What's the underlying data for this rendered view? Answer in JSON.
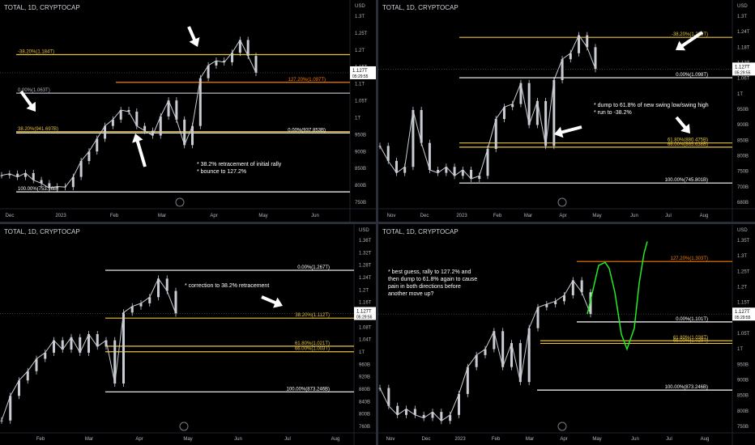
{
  "chart_data": [
    {
      "type": "candlestick",
      "title": "TOTAL, 1D, CRYPTOCAP",
      "y_unit": "USD",
      "x_ticks": [
        "Dec",
        "2023",
        "Feb",
        "Mar",
        "Apr",
        "May",
        "Jun"
      ],
      "y_ticks": [
        "1.3T",
        "1.25T",
        "1.2T",
        "1.15T",
        "1.1T",
        "1.05T",
        "1T",
        "950B",
        "900B",
        "850B",
        "800B",
        "750B"
      ],
      "ylim": [
        700,
        1320
      ],
      "price": "1.127T",
      "countdown": "05:29:55",
      "x_series": [
        0,
        10,
        20,
        30,
        40,
        50,
        60,
        70,
        80,
        90,
        100,
        110,
        120,
        130,
        140,
        150,
        160,
        170,
        180,
        190,
        200,
        210,
        220,
        230,
        240,
        250,
        260,
        270,
        280,
        290,
        300,
        310,
        320
      ],
      "series": [
        {
          "values": [
            805,
            810,
            800,
            812,
            790,
            780,
            765,
            770,
            768,
            800,
            850,
            880,
            920,
            960,
            980,
            1010,
            1005,
            960,
            945,
            930,
            990,
            1040,
            980,
            900,
            960,
            1110,
            1150,
            1165,
            1160,
            1190,
            1230,
            1180,
            1127
          ]
        }
      ],
      "levels": [
        {
          "label": "-38.20%(1.184T)",
          "value": 1184,
          "color": "#e8c33c",
          "side": "left"
        },
        {
          "label": "127.20%(1.097T)",
          "value": 1097,
          "color": "#f57c00",
          "side": "right"
        },
        {
          "label": "0.00%(1.063T)",
          "value": 1063,
          "color": "#b2b5be",
          "side": "left"
        },
        {
          "label": "38.20%(941.697B)",
          "value": 942,
          "color": "#e8c33c",
          "side": "left"
        },
        {
          "label": "0.00%(937.853B)",
          "value": 938,
          "color": "#ffffff",
          "side": "right"
        },
        {
          "label": "100.00%(753.16B)",
          "value": 753,
          "color": "#ffffff",
          "side": "left"
        }
      ],
      "annotation_lines": [
        "* 38.2% retracement of initial rally",
        "* bounce to 127.2%"
      ]
    },
    {
      "type": "candlestick",
      "title": "TOTAL, 1D, CRYPTOCAP",
      "y_unit": "USD",
      "x_ticks": [
        "Nov",
        "Dec",
        "2023",
        "Feb",
        "Mar",
        "Apr",
        "May",
        "Jun",
        "Jul",
        "Aug"
      ],
      "y_ticks": [
        "1.3T",
        "1.24T",
        "1.18T",
        "1.12T",
        "1.06T",
        "1T",
        "950B",
        "900B",
        "850B",
        "800B",
        "750B",
        "700B",
        "680B"
      ],
      "ylim": [
        660,
        1320
      ],
      "price": "1.127T",
      "countdown": "05:29:55",
      "x_series": [
        0,
        10,
        20,
        30,
        40,
        50,
        60,
        70,
        80,
        90,
        100,
        110,
        120,
        130,
        140,
        150,
        160,
        170,
        180,
        190,
        200,
        210,
        220,
        230,
        240,
        250,
        260
      ],
      "series": [
        {
          "values": [
            870,
            820,
            780,
            800,
            990,
            880,
            790,
            780,
            800,
            770,
            790,
            760,
            770,
            860,
            960,
            1000,
            1010,
            1080,
            940,
            1020,
            870,
            1090,
            1160,
            1180,
            1240,
            1200,
            1127
          ]
        }
      ],
      "levels": [
        {
          "label": "-38.20%(1.233T)",
          "value": 1233,
          "color": "#e8c33c",
          "side": "right"
        },
        {
          "label": "0.00%(1.098T)",
          "value": 1098,
          "color": "#ffffff",
          "side": "right"
        },
        {
          "label": "61.80%(880.475B)",
          "value": 880,
          "color": "#e8c33c",
          "side": "right"
        },
        {
          "label": "66.00%(865.638B)",
          "value": 866,
          "color": "#e8c33c",
          "side": "right"
        },
        {
          "label": "100.00%(745.801B)",
          "value": 746,
          "color": "#ffffff",
          "side": "right"
        }
      ],
      "annotation_lines": [
        "* dump to 61.8% of new swing low/swing high",
        "* run to -38.2%"
      ]
    },
    {
      "type": "candlestick",
      "title": "TOTAL, 1D, CRYPTOCAP",
      "y_unit": "USD",
      "x_ticks": [
        "Feb",
        "Mar",
        "Apr",
        "May",
        "Jun",
        "Jul",
        "Aug"
      ],
      "y_ticks": [
        "1.36T",
        "1.32T",
        "1.28T",
        "1.24T",
        "1.2T",
        "1.16T",
        "1.12T",
        "1.08T",
        "1.04T",
        "1T",
        "960B",
        "920B",
        "880B",
        "840B",
        "800B",
        "760B"
      ],
      "ylim": [
        740,
        1380
      ],
      "price": "1.127T",
      "countdown": "05:29:55",
      "x_series": [
        0,
        10,
        20,
        30,
        40,
        50,
        60,
        70,
        80,
        90,
        100,
        110,
        120,
        130,
        140,
        150,
        160,
        170,
        180,
        190,
        200
      ],
      "series": [
        {
          "values": [
            780,
            860,
            910,
            940,
            980,
            1000,
            1040,
            1010,
            1050,
            1000,
            1060,
            1020,
            1040,
            900,
            1130,
            1150,
            1160,
            1180,
            1240,
            1200,
            1127
          ]
        }
      ],
      "levels": [
        {
          "label": "0.00%(1.267T)",
          "value": 1267,
          "color": "#ffffff",
          "side": "right"
        },
        {
          "label": "38.20%(1.112T)",
          "value": 1112,
          "color": "#e8c33c",
          "side": "right"
        },
        {
          "label": "61.80%(1.021T)",
          "value": 1021,
          "color": "#e8c33c",
          "side": "right"
        },
        {
          "label": "66.00%(1.003T)",
          "value": 1003,
          "color": "#e8c33c",
          "side": "right"
        },
        {
          "label": "100.00%(873.246B)",
          "value": 873,
          "color": "#ffffff",
          "side": "right"
        }
      ],
      "annotation_lines": [
        "* correction to 38.2% retracement"
      ]
    },
    {
      "type": "candlestick",
      "title": "TOTAL, 1D, CRYPTOCAP",
      "y_unit": "USD",
      "x_ticks": [
        "Nov",
        "Dec",
        "2023",
        "Feb",
        "Mar",
        "Apr",
        "May",
        "Jun",
        "Jul",
        "Aug"
      ],
      "y_ticks": [
        "1.35T",
        "1.3T",
        "1.25T",
        "1.2T",
        "1.15T",
        "1.1T",
        "1.05T",
        "1T",
        "950B",
        "900B",
        "850B",
        "800B",
        "750B"
      ],
      "ylim": [
        730,
        1390
      ],
      "price": "1.127T",
      "countdown": "05:29:55",
      "x_series": [
        0,
        10,
        20,
        30,
        40,
        50,
        60,
        70,
        80,
        90,
        100,
        110,
        120,
        130,
        140,
        150,
        160,
        170,
        180,
        190,
        200,
        210,
        220,
        230,
        240
      ],
      "series": [
        {
          "values": [
            880,
            820,
            790,
            810,
            790,
            780,
            800,
            770,
            790,
            860,
            950,
            990,
            1010,
            1070,
            950,
            1030,
            900,
            1080,
            1150,
            1160,
            1170,
            1190,
            1240,
            1200,
            1127
          ]
        }
      ],
      "projection_y": [
        1127,
        1290,
        1300,
        1280,
        1200,
        1060,
        1010,
        1080,
        1230,
        1330,
        1370
      ],
      "levels": [
        {
          "label": "127.20%(1.303T)",
          "value": 1303,
          "color": "#f57c00",
          "side": "right"
        },
        {
          "label": "0.00%(1.101T)",
          "value": 1101,
          "color": "#ffffff",
          "side": "right"
        },
        {
          "label": "61.80%(1.038T)",
          "value": 1038,
          "color": "#e8c33c",
          "side": "right"
        },
        {
          "label": "66.00%(1.029T)",
          "value": 1029,
          "color": "#e8c33c",
          "side": "right"
        },
        {
          "label": "100.00%(873.246B)",
          "value": 873,
          "color": "#ffffff",
          "side": "right"
        }
      ],
      "annotation_lines": [
        "* best guess, rally to 127.2% and",
        "then dump to 61.8% again to cause",
        "pain in both directions before",
        "another move up?"
      ]
    }
  ],
  "colors": {
    "candle": "#c9ccd3",
    "axis_text": "#b2b5be",
    "price_tag_bg": "#ffffff",
    "projection": "#22ee22",
    "arrow": "#ffffff"
  },
  "logo": "tradingview-icon"
}
